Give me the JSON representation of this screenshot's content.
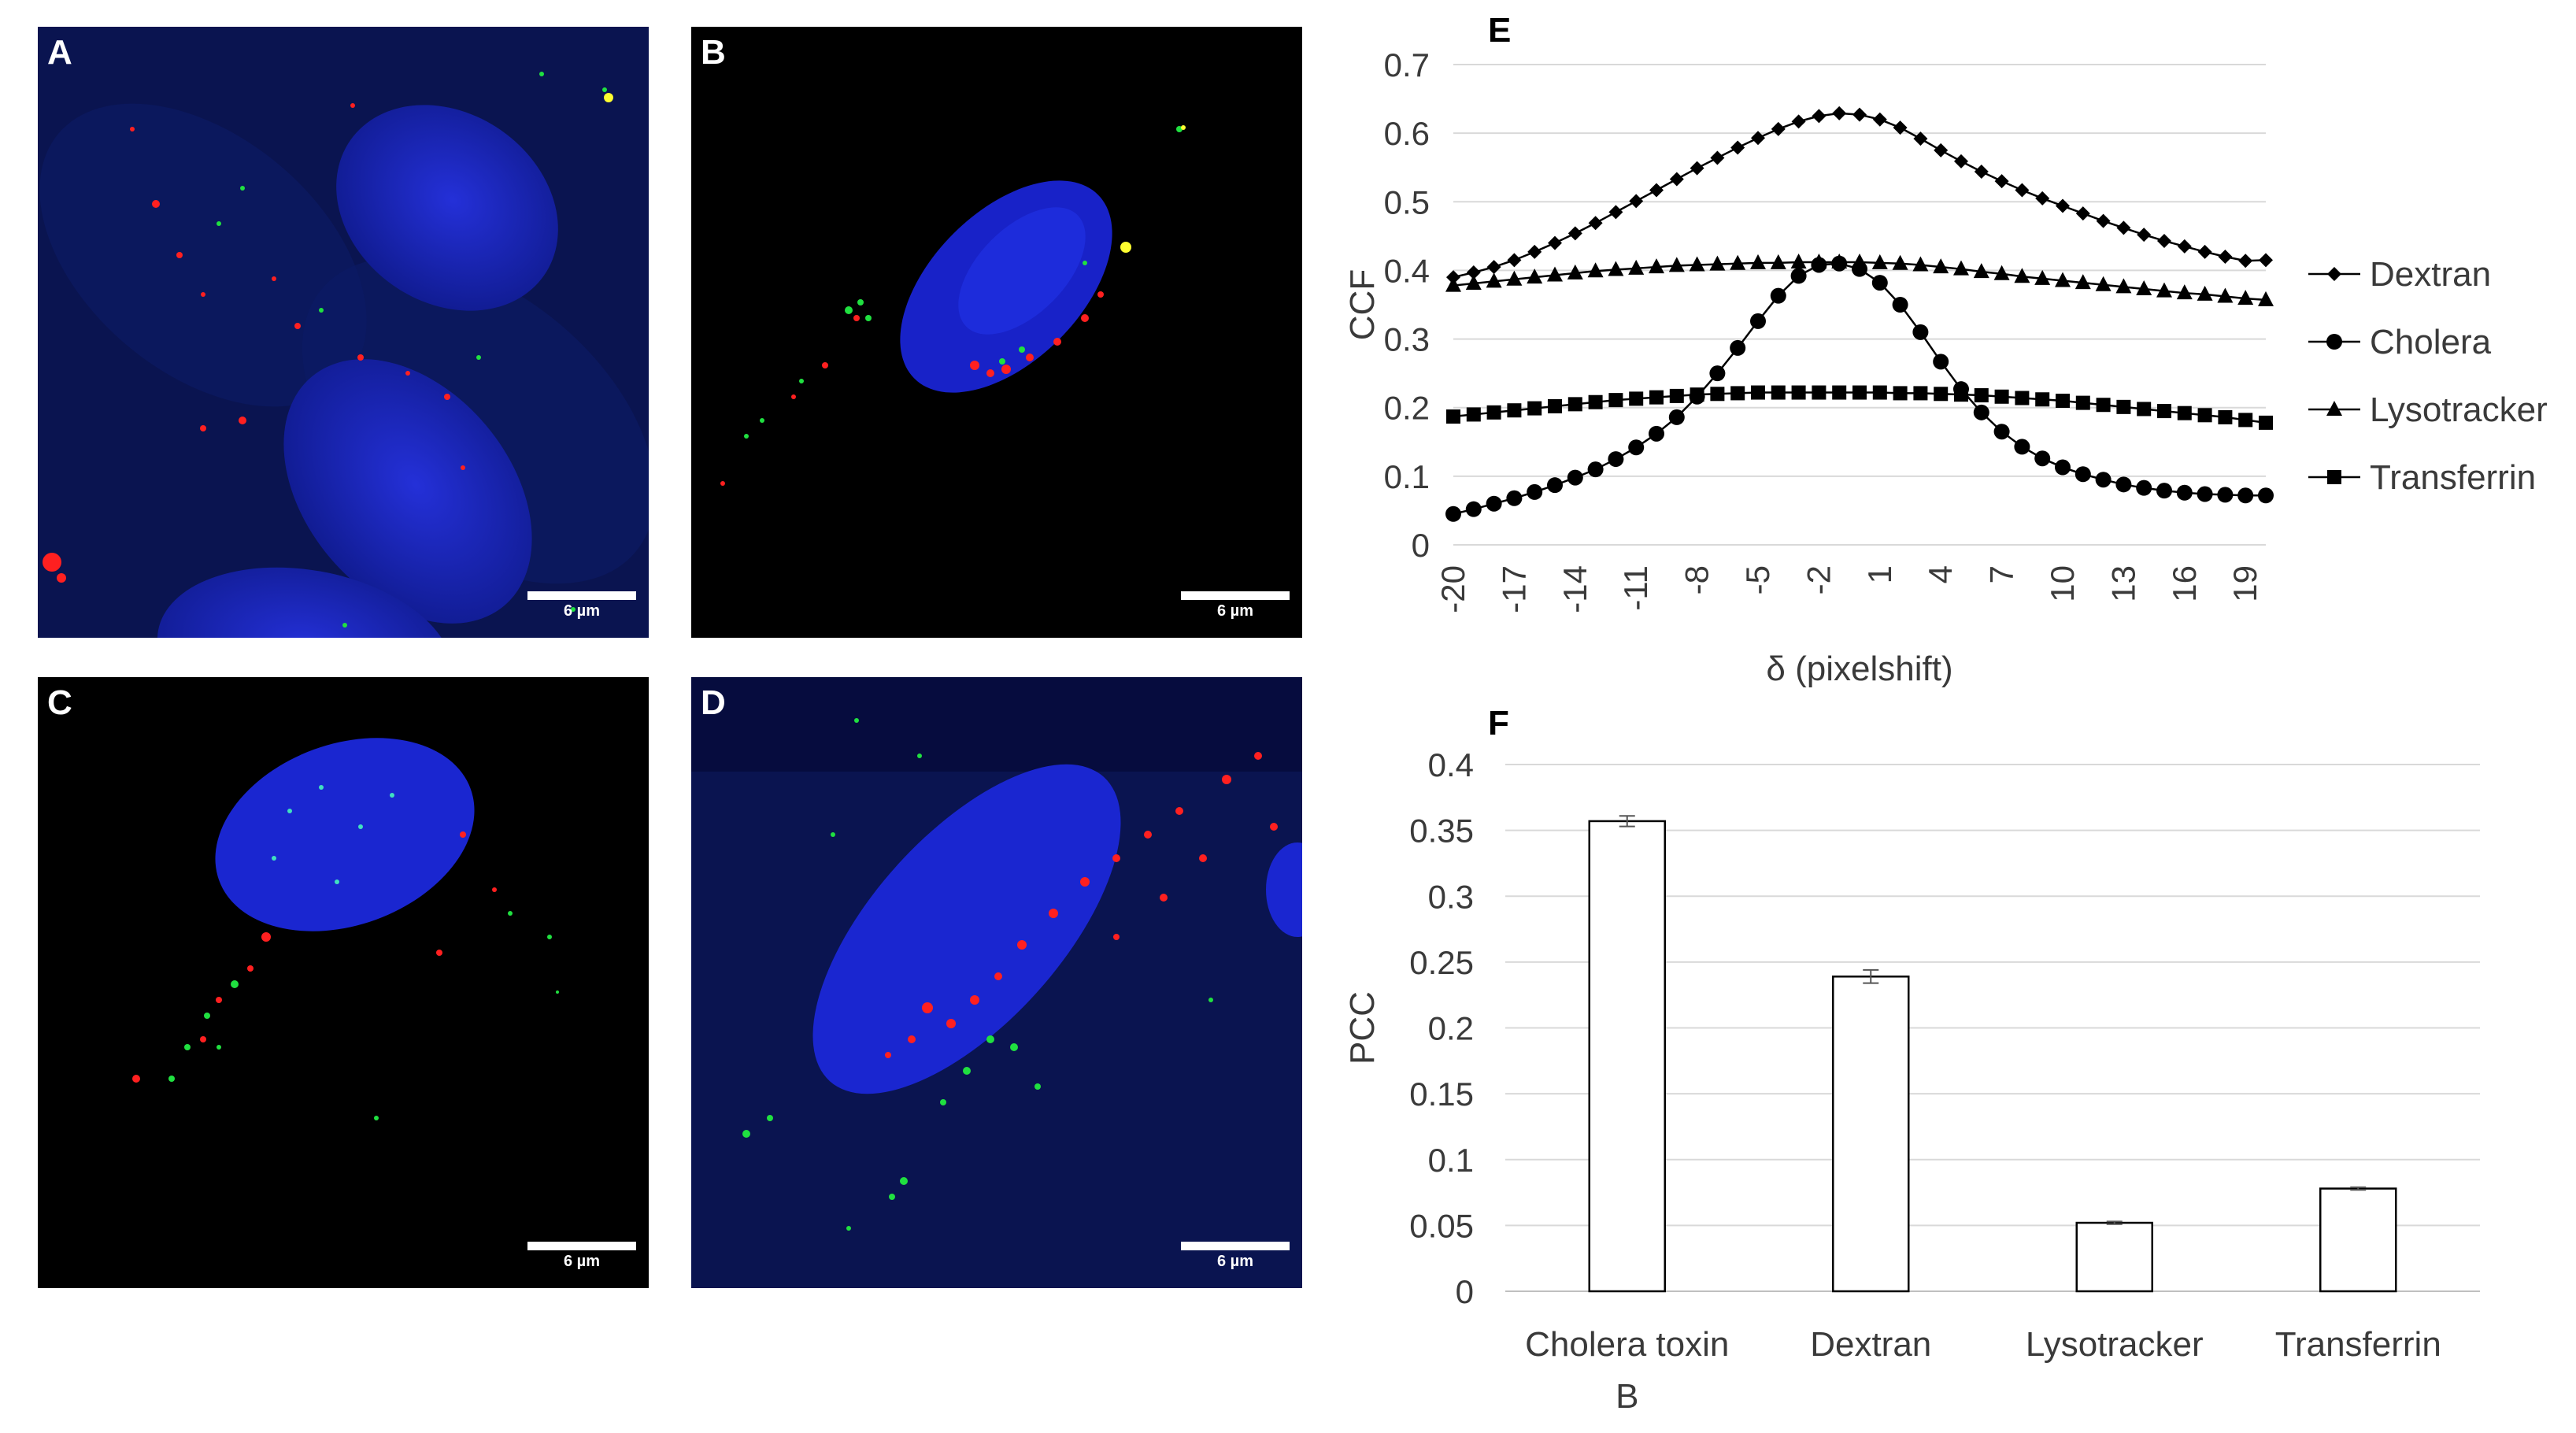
{
  "panels": [
    {
      "label": "A",
      "scale": "6 µm",
      "bg": "#0a1450"
    },
    {
      "label": "B",
      "scale": "6 µm",
      "bg": "#000000"
    },
    {
      "label": "C",
      "scale": "6 µm",
      "bg": "#000000"
    },
    {
      "label": "D",
      "scale": "6 µm",
      "bg": "#0a1450"
    }
  ],
  "chart_data": [
    {
      "panel_label": "E",
      "type": "line",
      "xlabel": "δ (pixelshift)",
      "ylabel": "CCF",
      "x": [
        -20,
        -19,
        -18,
        -17,
        -16,
        -15,
        -14,
        -13,
        -12,
        -11,
        -10,
        -9,
        -8,
        -7,
        -6,
        -5,
        -4,
        -3,
        -2,
        -1,
        0,
        1,
        2,
        3,
        4,
        5,
        6,
        7,
        8,
        9,
        10,
        11,
        12,
        13,
        14,
        15,
        16,
        17,
        18,
        19,
        20
      ],
      "xticks": [
        -20,
        -17,
        -14,
        -11,
        -8,
        -5,
        -2,
        1,
        4,
        7,
        10,
        13,
        16,
        19
      ],
      "ylim": [
        0,
        0.7
      ],
      "yticks": [
        "0",
        "0.1",
        "0.2",
        "0.3",
        "0.4",
        "0.5",
        "0.6",
        "0.7"
      ],
      "grid": true,
      "legend": "right",
      "series": [
        {
          "name": "Dextran",
          "marker": "diamond",
          "values": [
            0.39,
            0.397,
            0.405,
            0.415,
            0.427,
            0.44,
            0.454,
            0.469,
            0.485,
            0.501,
            0.517,
            0.533,
            0.549,
            0.564,
            0.579,
            0.593,
            0.606,
            0.617,
            0.625,
            0.629,
            0.627,
            0.62,
            0.608,
            0.592,
            0.575,
            0.559,
            0.544,
            0.53,
            0.517,
            0.505,
            0.494,
            0.483,
            0.472,
            0.462,
            0.452,
            0.443,
            0.435,
            0.427,
            0.42,
            0.414,
            0.415
          ]
        },
        {
          "name": "Cholera",
          "marker": "circle",
          "values": [
            0.045,
            0.052,
            0.06,
            0.068,
            0.077,
            0.087,
            0.098,
            0.11,
            0.125,
            0.142,
            0.162,
            0.186,
            0.216,
            0.25,
            0.287,
            0.326,
            0.363,
            0.392,
            0.408,
            0.41,
            0.402,
            0.382,
            0.35,
            0.31,
            0.267,
            0.227,
            0.193,
            0.165,
            0.143,
            0.126,
            0.113,
            0.103,
            0.095,
            0.088,
            0.083,
            0.079,
            0.076,
            0.074,
            0.073,
            0.072,
            0.072
          ]
        },
        {
          "name": "Lysotracker",
          "marker": "triangle",
          "values": [
            0.378,
            0.381,
            0.384,
            0.387,
            0.39,
            0.393,
            0.396,
            0.399,
            0.401,
            0.403,
            0.405,
            0.407,
            0.408,
            0.409,
            0.41,
            0.411,
            0.411,
            0.412,
            0.412,
            0.412,
            0.412,
            0.411,
            0.41,
            0.408,
            0.405,
            0.402,
            0.398,
            0.395,
            0.391,
            0.388,
            0.385,
            0.382,
            0.379,
            0.376,
            0.373,
            0.37,
            0.367,
            0.365,
            0.362,
            0.359,
            0.357
          ]
        },
        {
          "name": "Transferrin",
          "marker": "square",
          "values": [
            0.187,
            0.19,
            0.193,
            0.196,
            0.199,
            0.202,
            0.205,
            0.208,
            0.211,
            0.213,
            0.215,
            0.217,
            0.219,
            0.22,
            0.221,
            0.222,
            0.222,
            0.222,
            0.222,
            0.222,
            0.222,
            0.222,
            0.221,
            0.221,
            0.22,
            0.219,
            0.218,
            0.216,
            0.214,
            0.212,
            0.21,
            0.207,
            0.204,
            0.201,
            0.198,
            0.195,
            0.192,
            0.189,
            0.186,
            0.182,
            0.178
          ]
        }
      ]
    },
    {
      "panel_label": "F",
      "type": "bar",
      "ylabel": "PCC",
      "categories": [
        "Cholera toxin B",
        "Dextran",
        "Lysotracker",
        "Transferrin"
      ],
      "category_lines": [
        [
          "Cholera toxin",
          "B"
        ],
        [
          "Dextran"
        ],
        [
          "Lysotracker"
        ],
        [
          "Transferrin"
        ]
      ],
      "values": [
        0.357,
        0.239,
        0.052,
        0.078
      ],
      "errors": [
        0.004,
        0.005,
        0.001,
        0.001
      ],
      "ylim": [
        0,
        0.4
      ],
      "yticks": [
        "0",
        "0.05",
        "0.1",
        "0.15",
        "0.2",
        "0.25",
        "0.3",
        "0.35",
        "0.4"
      ],
      "grid": true
    }
  ]
}
